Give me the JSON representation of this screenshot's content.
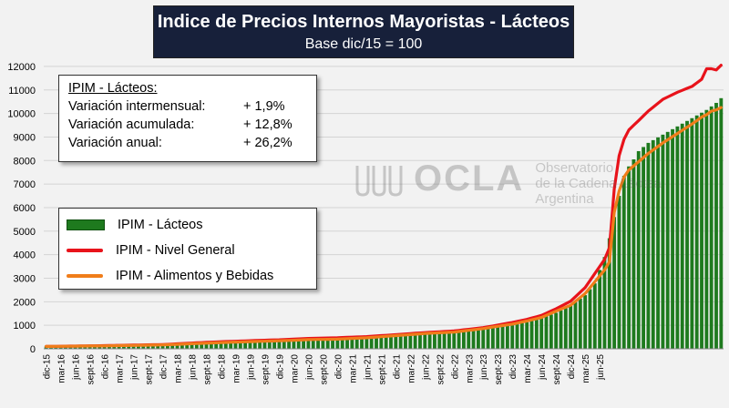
{
  "chart_data": {
    "type": "bar+line",
    "title": "Indice de Precios Internos Mayoristas - Lácteos",
    "subtitle": "Base dic/15 = 100",
    "xlabel": "",
    "ylabel": "",
    "ylim": [
      0,
      12500
    ],
    "yticks": [
      0,
      1000,
      2000,
      3000,
      4000,
      5000,
      6000,
      7000,
      8000,
      9000,
      10000,
      11000,
      12000
    ],
    "grid": true,
    "legend": "left",
    "start_month": "dic-15",
    "end_month": "jun-25",
    "tick_labels": [
      "dic-15",
      "mar-16",
      "jun-16",
      "sept-16",
      "dic-16",
      "mar-17",
      "jun-17",
      "sept-17",
      "dic-17",
      "mar-18",
      "jun-18",
      "sept-18",
      "dic-18",
      "mar-19",
      "jun-19",
      "sept-19",
      "dic-19",
      "mar-20",
      "jun-20",
      "sept-20",
      "dic-20",
      "mar-21",
      "jun-21",
      "sept-21",
      "dic-21",
      "mar-22",
      "jun-22",
      "sept-22",
      "dic-22",
      "mar-23",
      "jun-23",
      "sept-23",
      "dic-23",
      "mar-24",
      "jun-24",
      "sept-24",
      "dic-24",
      "mar-25",
      "jun-25"
    ],
    "series": [
      {
        "name": "IPIM - Lácteos",
        "kind": "bar",
        "color": "#1e7a1e",
        "anchors": [
          [
            0,
            100
          ],
          [
            12,
            130
          ],
          [
            24,
            170
          ],
          [
            30,
            215
          ],
          [
            36,
            270
          ],
          [
            42,
            300
          ],
          [
            48,
            350
          ],
          [
            54,
            400
          ],
          [
            60,
            420
          ],
          [
            66,
            480
          ],
          [
            72,
            560
          ],
          [
            78,
            650
          ],
          [
            84,
            700
          ],
          [
            90,
            830
          ],
          [
            96,
            1000
          ],
          [
            99,
            1130
          ],
          [
            102,
            1300
          ],
          [
            105,
            1530
          ],
          [
            108,
            1830
          ],
          [
            111,
            2280
          ],
          [
            113,
            2780
          ],
          [
            114,
            3350
          ],
          [
            115,
            3900
          ],
          [
            116,
            4700
          ],
          [
            117,
            5600
          ],
          [
            118,
            6500
          ],
          [
            119,
            7350
          ],
          [
            120,
            7750
          ],
          [
            121,
            8050
          ],
          [
            122,
            8400
          ],
          [
            124,
            8750
          ],
          [
            127,
            9100
          ],
          [
            130,
            9450
          ],
          [
            133,
            9800
          ],
          [
            136,
            10150
          ],
          [
            137,
            10300
          ],
          [
            138,
            10450
          ],
          [
            139,
            10650
          ]
        ]
      },
      {
        "name": "IPIM - Nivel General",
        "kind": "line",
        "color": "#e8131b",
        "anchors": [
          [
            0,
            100
          ],
          [
            12,
            135
          ],
          [
            24,
            180
          ],
          [
            30,
            245
          ],
          [
            36,
            300
          ],
          [
            42,
            345
          ],
          [
            48,
            385
          ],
          [
            54,
            440
          ],
          [
            60,
            470
          ],
          [
            66,
            520
          ],
          [
            72,
            600
          ],
          [
            78,
            690
          ],
          [
            84,
            760
          ],
          [
            90,
            900
          ],
          [
            96,
            1120
          ],
          [
            99,
            1250
          ],
          [
            102,
            1420
          ],
          [
            105,
            1700
          ],
          [
            108,
            2020
          ],
          [
            111,
            2600
          ],
          [
            113,
            3200
          ],
          [
            114,
            3500
          ],
          [
            115,
            3800
          ],
          [
            116,
            4300
          ],
          [
            117,
            6800
          ],
          [
            118,
            8200
          ],
          [
            119,
            8900
          ],
          [
            120,
            9300
          ],
          [
            122,
            9700
          ],
          [
            124,
            10100
          ],
          [
            127,
            10600
          ],
          [
            130,
            10900
          ],
          [
            133,
            11150
          ],
          [
            135,
            11450
          ],
          [
            136,
            11900
          ],
          [
            137,
            11900
          ],
          [
            138,
            11850
          ],
          [
            139,
            12050
          ]
        ]
      },
      {
        "name": "IPIM - Alimentos y Bebidas",
        "kind": "line",
        "color": "#f07d1a",
        "anchors": [
          [
            0,
            100
          ],
          [
            12,
            125
          ],
          [
            24,
            165
          ],
          [
            30,
            215
          ],
          [
            36,
            265
          ],
          [
            42,
            305
          ],
          [
            48,
            340
          ],
          [
            54,
            390
          ],
          [
            60,
            410
          ],
          [
            66,
            470
          ],
          [
            72,
            560
          ],
          [
            78,
            650
          ],
          [
            84,
            710
          ],
          [
            90,
            860
          ],
          [
            96,
            1050
          ],
          [
            99,
            1180
          ],
          [
            102,
            1330
          ],
          [
            105,
            1600
          ],
          [
            108,
            1850
          ],
          [
            111,
            2350
          ],
          [
            113,
            2850
          ],
          [
            114,
            3100
          ],
          [
            115,
            3350
          ],
          [
            116,
            3700
          ],
          [
            117,
            5800
          ],
          [
            118,
            6700
          ],
          [
            119,
            7300
          ],
          [
            120,
            7600
          ],
          [
            122,
            7950
          ],
          [
            124,
            8300
          ],
          [
            127,
            8750
          ],
          [
            130,
            9150
          ],
          [
            133,
            9550
          ],
          [
            135,
            9850
          ],
          [
            136,
            9950
          ],
          [
            137,
            10100
          ],
          [
            138,
            10150
          ],
          [
            139,
            10250
          ]
        ]
      }
    ]
  },
  "stats": {
    "heading": "IPIM - Lácteos:",
    "rows": [
      {
        "label": "Variación intermensual:",
        "value": "+ 1,9%"
      },
      {
        "label": "Variación acumulada:",
        "value": "+ 12,8%"
      },
      {
        "label": "Variación  anual:",
        "value": "+ 26,2%"
      }
    ]
  },
  "watermark": {
    "logo": "OCLA",
    "line1": "Observatorio",
    "line2": "de la Cadena Láctea",
    "line3": "Argentina"
  }
}
